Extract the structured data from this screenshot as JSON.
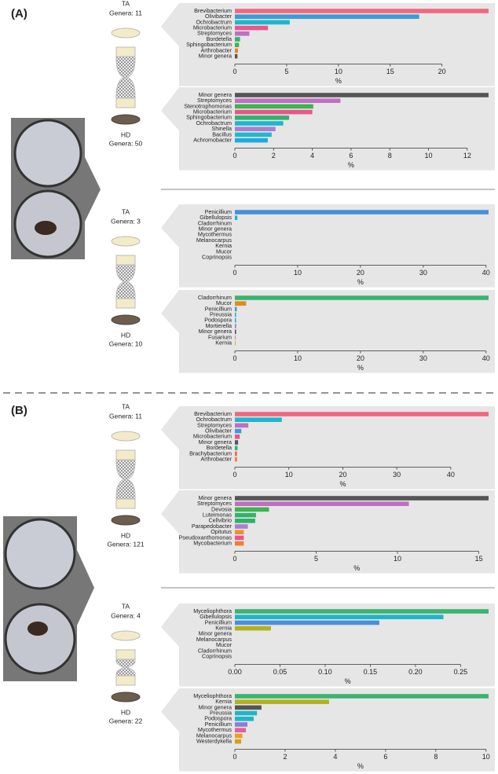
{
  "panels": [
    {
      "label": "(A)",
      "samples": [
        {
          "name": "TA",
          "genera": "Genera:  11"
        },
        {
          "name": "HD",
          "genera": "Genera:  50"
        },
        {
          "name": "TA",
          "genera": "Genera:  3"
        },
        {
          "name": "HD",
          "genera": "Genera:  10"
        }
      ]
    },
    {
      "label": "(B)",
      "samples": [
        {
          "name": "TA",
          "genera": "Genera:  11"
        },
        {
          "name": "HD",
          "genera": "Genera:  121"
        },
        {
          "name": "TA",
          "genera": "Genera:  4"
        },
        {
          "name": "HD",
          "genera": "Genera:  22"
        }
      ]
    }
  ],
  "chart_data": [
    {
      "type": "bar",
      "orientation": "horizontal",
      "categories": [
        "Brevibacterium",
        "Olivibacter",
        "Ochrobactrum",
        "Microbacterium",
        "Streptomyces",
        "Bordetella",
        "Sphingobacterium",
        "Arthrobacter",
        "Minor genera"
      ],
      "values": [
        24.5,
        17.8,
        5.3,
        3.2,
        1.4,
        0.5,
        0.4,
        0.3,
        0.25
      ],
      "colors": [
        "#f0677f",
        "#3b9bd8",
        "#1db6cf",
        "#e8568c",
        "#c06fc2",
        "#34b26d",
        "#3fb34f",
        "#ef7f2c",
        "#555555"
      ],
      "xlim": [
        0,
        24.5
      ],
      "xticks": [
        0,
        5,
        10,
        15,
        20
      ],
      "xlabel": "%"
    },
    {
      "type": "bar",
      "orientation": "horizontal",
      "categories": [
        "Minor genera",
        "Streptomyces",
        "Stenotrophomonas",
        "Microbacterium",
        "Sphingobacterium",
        "Ochrobactrum",
        "Shinella",
        "Bacillus",
        "Achromobacter"
      ],
      "values": [
        13.1,
        5.45,
        4.05,
        4.0,
        2.8,
        2.5,
        2.1,
        1.9,
        1.7
      ],
      "colors": [
        "#555555",
        "#c06fc2",
        "#3fb34f",
        "#e8568c",
        "#34b26d",
        "#1db6cf",
        "#a97fd0",
        "#22b8d0",
        "#1fa9df"
      ],
      "xlim": [
        0,
        13.1
      ],
      "xticks": [
        0,
        2,
        4,
        6,
        8,
        10,
        12
      ],
      "xlabel": "%"
    },
    {
      "type": "bar",
      "orientation": "horizontal",
      "categories": [
        "Penicillium",
        "Gibellulopsis",
        "Cladorrhinum",
        "Minor genera",
        "Mycothermus",
        "Melanocarpus",
        "Kernia",
        "Mucor",
        "Coprinopsis"
      ],
      "values": [
        40.4,
        0.4,
        0,
        0,
        0,
        0,
        0,
        0,
        0
      ],
      "colors": [
        "#4a8fd8",
        "#1fb5c9",
        "#3cb371",
        "#555555",
        "#e060a0",
        "#e8a020",
        "#b5b020",
        "#e08a1e",
        "#999999"
      ],
      "xlim": [
        0,
        40.4
      ],
      "xticks": [
        0,
        10,
        20,
        30,
        40
      ],
      "xlabel": "%"
    },
    {
      "type": "bar",
      "orientation": "horizontal",
      "categories": [
        "Cladorrhinum",
        "Mucor",
        "Penicillium",
        "Preussia",
        "Podospora",
        "Mortierella",
        "Minor genera",
        "Fusarium",
        "Kernia"
      ],
      "values": [
        40.4,
        1.8,
        0.3,
        0.2,
        0.2,
        0.2,
        0.2,
        0.1,
        0.1
      ],
      "colors": [
        "#3cb371",
        "#e08a1e",
        "#4a8fd8",
        "#1fb5c9",
        "#22b5c9",
        "#8a7fd0",
        "#555555",
        "#e06080",
        "#b5b020"
      ],
      "xlim": [
        0,
        40.4
      ],
      "xticks": [
        0,
        10,
        20,
        30,
        40
      ],
      "xlabel": "%"
    },
    {
      "type": "bar",
      "orientation": "horizontal",
      "categories": [
        "Brevibacterium",
        "Ochrobactrum",
        "Streptomyces",
        "Olivibacter",
        "Microbacterium",
        "Minor genera",
        "Bordetella",
        "Brachybacterium",
        "Arthrobacter"
      ],
      "values": [
        47,
        8.7,
        2.5,
        1.2,
        0.9,
        0.6,
        0.5,
        0.4,
        0.4
      ],
      "colors": [
        "#f0677f",
        "#1db6cf",
        "#c06fc2",
        "#3b9bd8",
        "#e8568c",
        "#555555",
        "#34b26d",
        "#ef6a4a",
        "#ef7f2c"
      ],
      "xlim": [
        0,
        47
      ],
      "xticks": [
        0,
        10,
        20,
        30,
        40
      ],
      "xlabel": "%"
    },
    {
      "type": "bar",
      "orientation": "horizontal",
      "categories": [
        "Minor genera",
        "Streptomyces",
        "Devosia",
        "Luteimonas",
        "Cellvibrio",
        "Parapedobacter",
        "Opitutus",
        "Pseudoxanthomonas",
        "Mycobacterium"
      ],
      "values": [
        15.6,
        10.7,
        2.1,
        1.3,
        1.25,
        0.8,
        0.55,
        0.55,
        0.55
      ],
      "colors": [
        "#555555",
        "#c06fc2",
        "#3fb34f",
        "#34b26d",
        "#2fb06a",
        "#a97fd0",
        "#ef8f2c",
        "#e8568c",
        "#ef7f2c"
      ],
      "xlim": [
        0,
        15.6
      ],
      "xticks": [
        0,
        5,
        10,
        15
      ],
      "xlabel": "%"
    },
    {
      "type": "bar",
      "orientation": "horizontal",
      "categories": [
        "Myceliophthora",
        "Gibellulopsis",
        "Penicillium",
        "Kernia",
        "Minor genera",
        "Melanocarpus",
        "Mucor",
        "Cladorrhinum",
        "Coprinopsis"
      ],
      "values": [
        0.281,
        0.231,
        0.16,
        0.04,
        0,
        0,
        0,
        0,
        0
      ],
      "colors": [
        "#3cb371",
        "#1fb5c9",
        "#4a8fd8",
        "#b5b020",
        "#555555",
        "#e8a020",
        "#e08a1e",
        "#3cb371",
        "#999999"
      ],
      "xlim": [
        0,
        0.281
      ],
      "xticks": [
        {
          "value": 0,
          "label": "0.00"
        },
        {
          "value": 0.05,
          "label": "0.05"
        },
        {
          "value": 0.1,
          "label": "0.10"
        },
        {
          "value": 0.15,
          "label": "0.15"
        },
        {
          "value": 0.2,
          "label": "0.20"
        },
        {
          "value": 0.25,
          "label": "0.25"
        }
      ],
      "xlabel": "%"
    },
    {
      "type": "bar",
      "orientation": "horizontal",
      "categories": [
        "Myceliophthora",
        "Kernia",
        "Minor genera",
        "Preussia",
        "Podospora",
        "Penicillium",
        "Mycothermus",
        "Melanocarpus",
        "Westerdykella"
      ],
      "values": [
        10.1,
        3.75,
        1.06,
        0.88,
        0.75,
        0.5,
        0.44,
        0.3,
        0.25
      ],
      "colors": [
        "#3cb371",
        "#b5b020",
        "#555555",
        "#1fb5c9",
        "#22b5c9",
        "#8a7fd0",
        "#e060a0",
        "#e8a020",
        "#d4a017"
      ],
      "xlim": [
        0,
        10.1
      ],
      "xticks": [
        0,
        2,
        4,
        6,
        8,
        10
      ],
      "xlabel": "%"
    }
  ]
}
